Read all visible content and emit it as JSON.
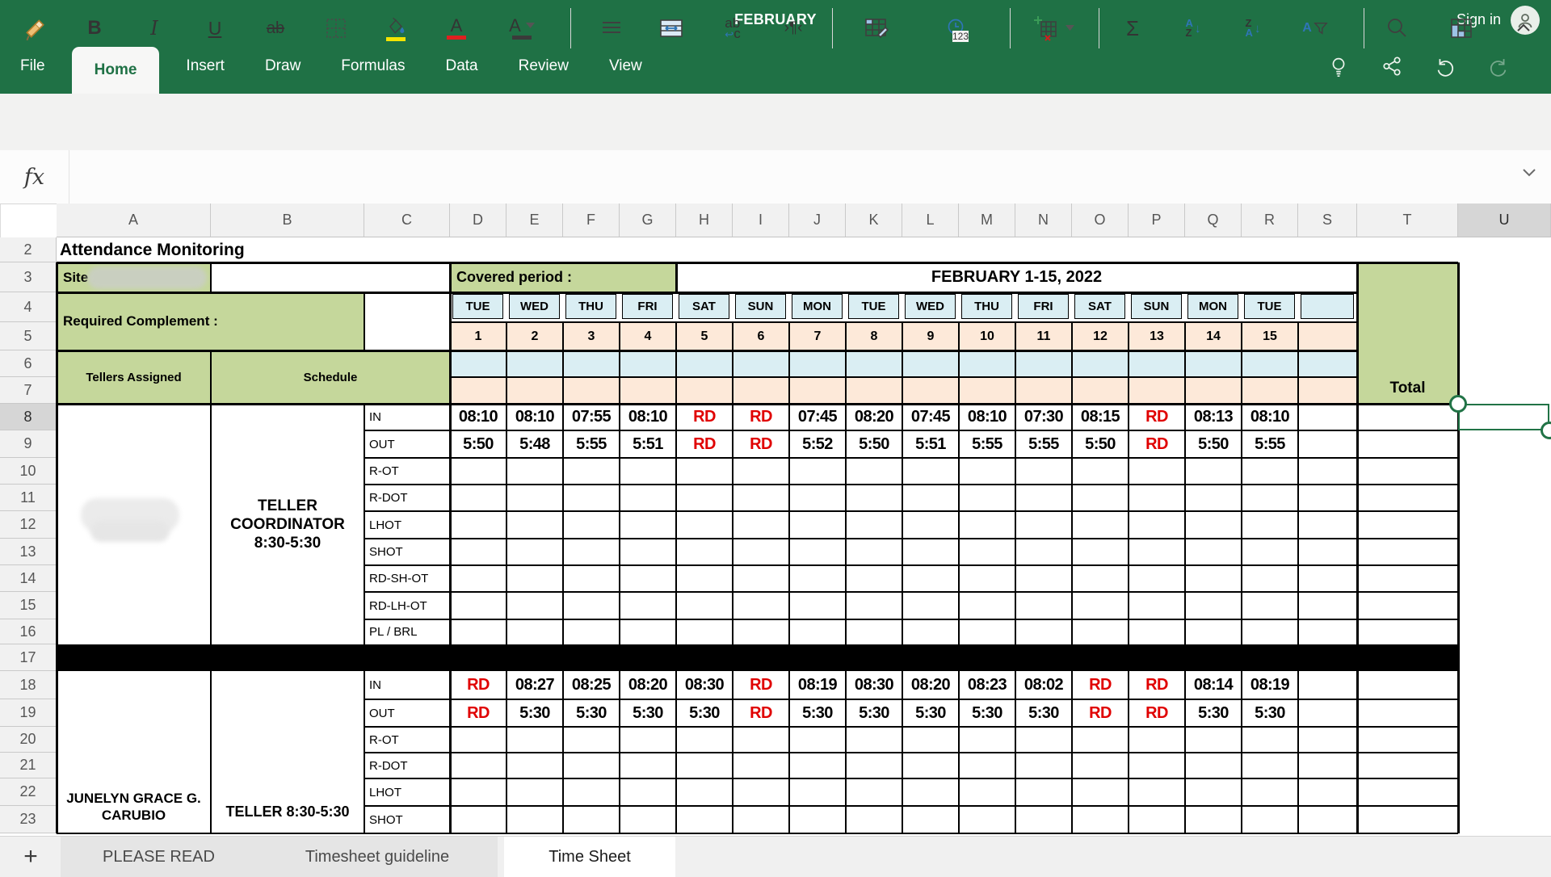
{
  "app": {
    "title": "FEBRUARY",
    "sign_in": "Sign in"
  },
  "menu": {
    "items": [
      "File",
      "Home",
      "Insert",
      "Draw",
      "Formulas",
      "Data",
      "Review",
      "View"
    ],
    "active": "Home"
  },
  "toolbar": {
    "bold": "B",
    "italic": "I",
    "underline": "U",
    "strikethrough": "ab",
    "font_color_letter": "A",
    "font_letter": "A",
    "wrap_text": "ab",
    "wrap_arrow": "↩",
    "pilcrow": "›¶‹",
    "number_format": "123",
    "autosum": "Σ",
    "sort_asc": [
      "A",
      "Z"
    ],
    "sort_desc": [
      "Z",
      "A"
    ],
    "filter_letter": "A",
    "fill_bar_color": "#f5e400",
    "font_color_bar": "#e02020",
    "font_bar_color": "#3a3a3a"
  },
  "formula_bar": {
    "fx_label": "fx",
    "value": ""
  },
  "sheet": {
    "columns": [
      "A",
      "B",
      "C",
      "D",
      "E",
      "F",
      "G",
      "H",
      "I",
      "J",
      "K",
      "L",
      "M",
      "N",
      "O",
      "P",
      "Q",
      "R",
      "S",
      "T",
      "U"
    ],
    "rows": [
      "2",
      "3",
      "4",
      "5",
      "6",
      "7",
      "8",
      "9",
      "10",
      "11",
      "12",
      "13",
      "14",
      "15",
      "16",
      "17",
      "18",
      "19",
      "20",
      "21",
      "22",
      "23"
    ],
    "selected_column": "U",
    "selected_row": "8",
    "selected_cell": "U8",
    "title": "Attendance Monitoring",
    "site_label": "Site :",
    "covered_label": "Covered period :",
    "covered_value": "FEBRUARY 1-15, 2022",
    "required_label": "Required Complement :",
    "tellers_label": "Tellers Assigned",
    "schedule_label": "Schedule",
    "total_label": "Total",
    "day_headers": [
      "TUE",
      "WED",
      "THU",
      "FRI",
      "SAT",
      "SUN",
      "MON",
      "TUE",
      "WED",
      "THU",
      "FRI",
      "SAT",
      "SUN",
      "MON",
      "TUE"
    ],
    "day_numbers": [
      "1",
      "2",
      "3",
      "4",
      "5",
      "6",
      "7",
      "8",
      "9",
      "10",
      "11",
      "12",
      "13",
      "14",
      "15"
    ],
    "row_labels_1": [
      "IN",
      "OUT",
      "R-OT",
      "R-DOT",
      "LHOT",
      "SHOT",
      "RD-SH-OT",
      "RD-LH-OT",
      "PL / BRL"
    ],
    "row_labels_2": [
      "IN",
      "OUT",
      "R-OT",
      "R-DOT",
      "LHOT",
      "SHOT"
    ],
    "employee1": {
      "role_lines": [
        "TELLER",
        "COORDINATOR",
        "8:30-5:30"
      ],
      "time_in": [
        "08:10",
        "08:10",
        "07:55",
        "08:10",
        "RD",
        "RD",
        "07:45",
        "08:20",
        "07:45",
        "08:10",
        "07:30",
        "08:15",
        "RD",
        "08:13",
        "08:10"
      ],
      "time_out": [
        "5:50",
        "5:48",
        "5:55",
        "5:51",
        "RD",
        "RD",
        "5:52",
        "5:50",
        "5:51",
        "5:55",
        "5:55",
        "5:50",
        "RD",
        "5:50",
        "5:55"
      ]
    },
    "employee2": {
      "name_lines": [
        "JUNELYN GRACE G.",
        "CARUBIO"
      ],
      "role": "TELLER 8:30-5:30",
      "time_in": [
        "RD",
        "08:27",
        "08:25",
        "08:20",
        "08:30",
        "RD",
        "08:19",
        "08:30",
        "08:20",
        "08:23",
        "08:02",
        "RD",
        "RD",
        "08:14",
        "08:19"
      ],
      "time_out": [
        "RD",
        "5:30",
        "5:30",
        "5:30",
        "5:30",
        "RD",
        "5:30",
        "5:30",
        "5:30",
        "5:30",
        "5:30",
        "RD",
        "RD",
        "5:30",
        "5:30"
      ]
    }
  },
  "tabs": {
    "add": "+",
    "items": [
      "PLEASE READ",
      "Timesheet guideline",
      "Time Sheet"
    ],
    "active": "Time Sheet"
  },
  "colors": {
    "app_green": "#1f7145",
    "cell_green": "#c5d79b",
    "cell_blue": "#daeef3",
    "cell_peach": "#fde9d9",
    "rd_red": "#e00000",
    "selection_green": "#217346"
  }
}
